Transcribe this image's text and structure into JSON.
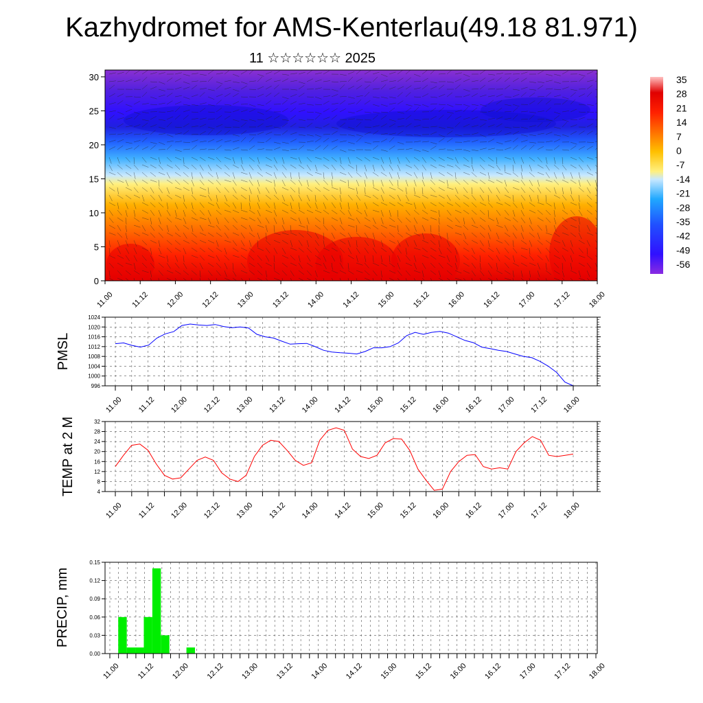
{
  "title": "Kazhydromet for AMS-Kenterlau(49.18 81.971)",
  "subtitle": "11 ☆☆☆☆☆☆ 2025",
  "time_labels": [
    "11.00",
    "11.12",
    "12.00",
    "12.12",
    "13.00",
    "13.12",
    "14.00",
    "14.12",
    "15.00",
    "15.12",
    "16.00",
    "16.12",
    "17.00",
    "17.12",
    "18.00"
  ],
  "chart_data": [
    {
      "type": "heatmap",
      "name": "cross-section",
      "x_labels": [
        "11.00",
        "11.12",
        "12.00",
        "12.12",
        "13.00",
        "13.12",
        "14.00",
        "14.12",
        "15.00",
        "15.12",
        "16.00",
        "16.12",
        "17.00",
        "17.12",
        "18.00"
      ],
      "y_ticks": [
        0,
        5,
        10,
        15,
        20,
        25,
        30
      ],
      "ylim": [
        0,
        31
      ],
      "colorbar_labels": [
        "35",
        "28",
        "21",
        "14",
        "7",
        "0",
        "-7",
        "-14",
        "-21",
        "-28",
        "-35",
        "-42",
        "-49",
        "-56"
      ],
      "colormap": [
        "#8a2be2",
        "#3020ff",
        "#2050ff",
        "#20a8ff",
        "#c8e8ff",
        "#fff080",
        "#ffc000",
        "#ff8000",
        "#ff2000",
        "#e00000",
        "#ffc0c0"
      ],
      "description_visible": "temperature shading with wind barbs"
    },
    {
      "type": "line",
      "ylabel": "PMSL",
      "y_ticks": [
        996,
        1000,
        1004,
        1008,
        1012,
        1016,
        1020,
        1024
      ],
      "ylim": [
        996,
        1024
      ],
      "color": "#0000ff",
      "x_labels": [
        "11.00",
        "11.12",
        "12.00",
        "12.12",
        "13.00",
        "13.12",
        "14.00",
        "14.12",
        "15.00",
        "15.12",
        "16.00",
        "16.12",
        "17.00",
        "17.12",
        "18.00"
      ],
      "values": [
        1013.2,
        1013.5,
        1012.5,
        1011.8,
        1012.6,
        1015.5,
        1017.2,
        1018.1,
        1020.6,
        1021.2,
        1020.8,
        1020.6,
        1021.0,
        1020.2,
        1019.7,
        1020.0,
        1019.6,
        1017.0,
        1016.0,
        1015.5,
        1014.2,
        1013.0,
        1013.2,
        1013.3,
        1012.0,
        1010.5,
        1009.8,
        1009.5,
        1009.3,
        1009.0,
        1010.0,
        1011.5,
        1011.5,
        1012.0,
        1013.5,
        1016.5,
        1017.8,
        1017.0,
        1017.8,
        1018.2,
        1017.5,
        1016.0,
        1014.5,
        1013.6,
        1011.8,
        1011.2,
        1010.5,
        1010.0,
        1009.0,
        1008.0,
        1007.5,
        1006.0,
        1004.0,
        1001.5,
        997.5,
        996.0
      ]
    },
    {
      "type": "line",
      "ylabel": "TEMP at 2 M",
      "y_ticks": [
        4,
        8,
        12,
        16,
        20,
        24,
        28,
        32
      ],
      "ylim": [
        4,
        32
      ],
      "color": "#ff0000",
      "x_labels": [
        "11.00",
        "11.12",
        "12.00",
        "12.12",
        "13.00",
        "13.12",
        "14.00",
        "14.12",
        "15.00",
        "15.12",
        "16.00",
        "16.12",
        "17.00",
        "17.12",
        "18.00"
      ],
      "values": [
        14.0,
        18.5,
        22.5,
        23.0,
        20.5,
        15.0,
        10.5,
        9.0,
        9.5,
        13.0,
        16.5,
        17.8,
        16.5,
        11.5,
        9.0,
        8.0,
        10.5,
        18.0,
        22.5,
        24.5,
        24.0,
        20.5,
        16.5,
        14.5,
        15.5,
        24.5,
        28.5,
        29.5,
        28.5,
        21.0,
        18.0,
        17.2,
        18.5,
        23.5,
        25.2,
        25.0,
        20.5,
        13.0,
        8.5,
        4.5,
        5.0,
        12.0,
        16.0,
        18.5,
        18.8,
        14.0,
        13.0,
        13.5,
        13.0,
        20.0,
        23.5,
        26.0,
        24.5,
        18.5,
        18.0,
        18.5,
        19.0
      ]
    },
    {
      "type": "bar",
      "ylabel": "PRECIP, mm",
      "y_ticks": [
        "0.00",
        "0.03",
        "0.06",
        "0.09",
        "0.12",
        "0.15"
      ],
      "ylim": [
        0,
        0.15
      ],
      "color": "#00ee00",
      "x_labels": [
        "11.00",
        "11.12",
        "12.00",
        "12.12",
        "13.00",
        "13.12",
        "14.00",
        "14.12",
        "15.00",
        "15.12",
        "16.00",
        "16.12",
        "17.00",
        "17.12",
        "18.00"
      ],
      "values": [
        0,
        0.06,
        0.01,
        0.01,
        0.06,
        0.14,
        0.03,
        0,
        0,
        0.01,
        0,
        0,
        0,
        0,
        0,
        0,
        0,
        0,
        0,
        0,
        0,
        0,
        0,
        0,
        0,
        0,
        0,
        0,
        0,
        0,
        0,
        0,
        0,
        0,
        0,
        0,
        0,
        0,
        0,
        0,
        0,
        0,
        0,
        0,
        0,
        0,
        0,
        0,
        0,
        0,
        0,
        0,
        0,
        0,
        0,
        0,
        0,
        0
      ]
    }
  ]
}
